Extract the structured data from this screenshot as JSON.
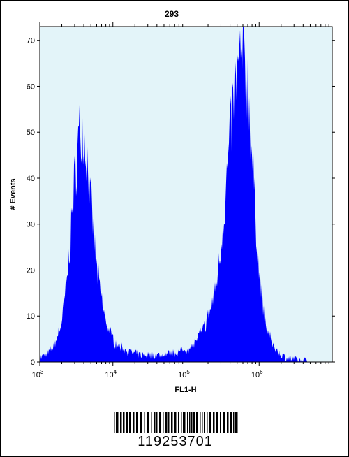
{
  "chart_data": {
    "type": "area",
    "title": "293",
    "xlabel": "FL1-H",
    "ylabel": "# Events",
    "xscale": "log",
    "xlim": [
      1000,
      10000000
    ],
    "ylim": [
      0,
      73
    ],
    "y_ticks": [
      0,
      10,
      20,
      30,
      40,
      50,
      60,
      70
    ],
    "x_ticks": [
      {
        "value": 1000,
        "base": "10",
        "exp": "3"
      },
      {
        "value": 10000,
        "base": "10",
        "exp": "4"
      },
      {
        "value": 100000,
        "base": "10",
        "exp": "5"
      },
      {
        "value": 1000000,
        "base": "10",
        "exp": "6"
      }
    ],
    "fill_color": "#0000ff",
    "background_color": "#e3f4f9",
    "series": [
      {
        "x": [
          1000,
          1300,
          1600,
          2000,
          2300,
          2600,
          2900,
          3200,
          3500,
          3800,
          4200,
          4600,
          5000,
          5500,
          6000,
          7000,
          8000,
          9500,
          11000,
          14000,
          18000,
          25000,
          40000,
          70000,
          110000,
          140000,
          180000,
          220000,
          260000,
          300000,
          350000,
          400000,
          450000,
          500000,
          550000,
          600000,
          650000,
          700000,
          750000,
          800000,
          900000,
          1000000,
          1200000,
          1500000,
          2000000,
          3000000,
          5000000
        ],
        "y": [
          1,
          2,
          4,
          9,
          17,
          27,
          38,
          46,
          52,
          52,
          49,
          43,
          35,
          28,
          21,
          14,
          9,
          6,
          4,
          3,
          2,
          1.5,
          1.5,
          2,
          3,
          5,
          8,
          12,
          18,
          26,
          38,
          50,
          59,
          64,
          67,
          68,
          66,
          62,
          55,
          46,
          32,
          20,
          9,
          4,
          1.5,
          0.5,
          0.2
        ]
      }
    ]
  },
  "barcode": {
    "number": "119253701"
  }
}
